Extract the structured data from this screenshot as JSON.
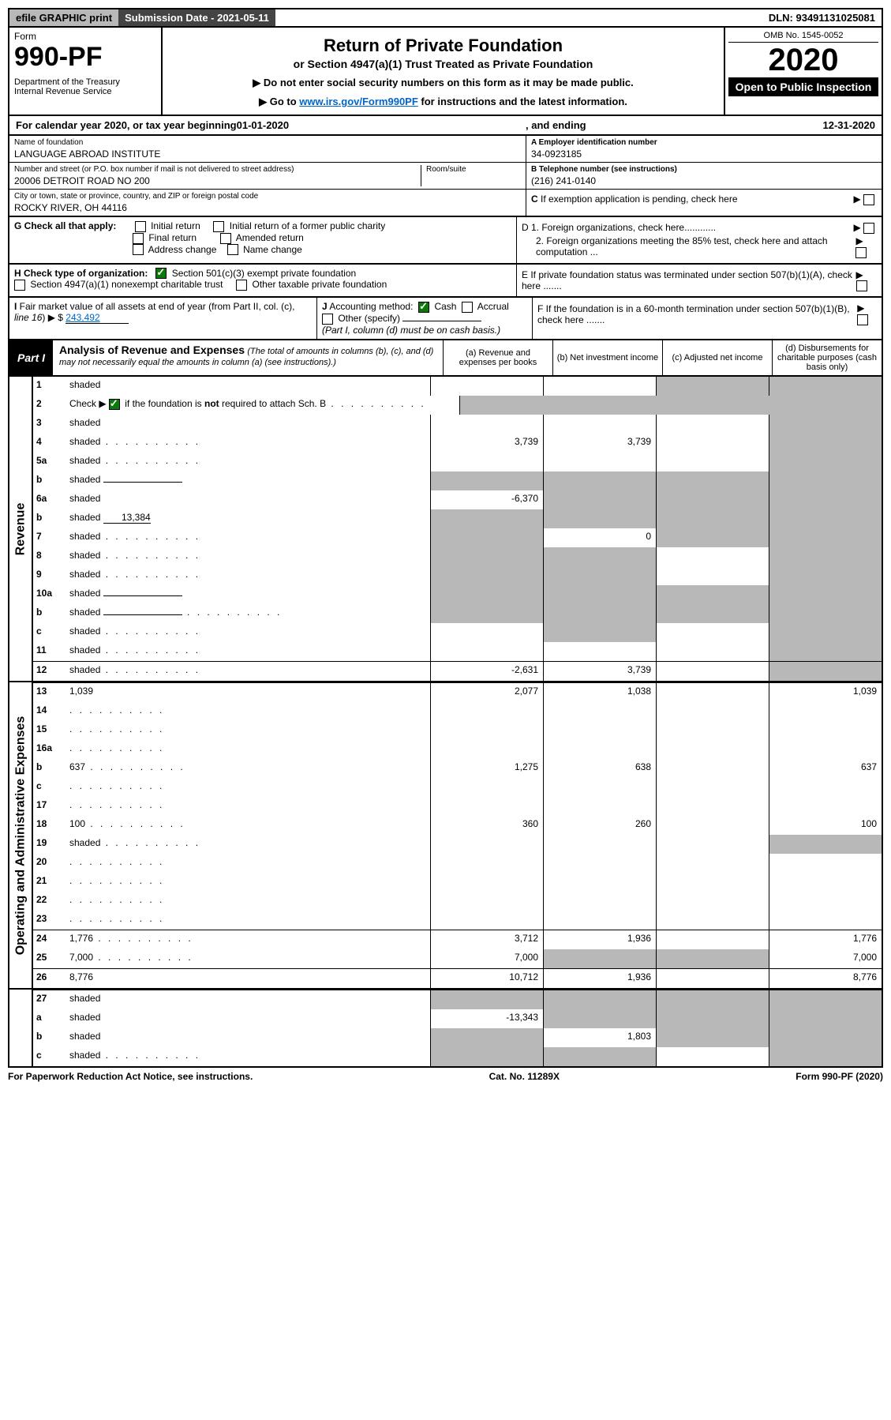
{
  "topbar": {
    "efile": "efile GRAPHIC print",
    "subdate": "Submission Date - 2021-05-11",
    "dln": "DLN: 93491131025081"
  },
  "header": {
    "form_label": "Form",
    "form_no": "990-PF",
    "dept": "Department of the Treasury\nInternal Revenue Service",
    "title": "Return of Private Foundation",
    "subtitle": "or Section 4947(a)(1) Trust Treated as Private Foundation",
    "instr1": "▶ Do not enter social security numbers on this form as it may be made public.",
    "instr2_pre": "▶ Go to ",
    "instr2_link": "www.irs.gov/Form990PF",
    "instr2_post": " for instructions and the latest information.",
    "omb": "OMB No. 1545-0052",
    "year": "2020",
    "open_public": "Open to Public Inspection"
  },
  "calyear": {
    "pre": "For calendar year 2020, or tax year beginning ",
    "begin": "01-01-2020",
    "mid": ", and ending ",
    "end": "12-31-2020"
  },
  "id": {
    "name_lbl": "Name of foundation",
    "name": "LANGUAGE ABROAD INSTITUTE",
    "addr_lbl": "Number and street (or P.O. box number if mail is not delivered to street address)",
    "addr": "20006 DETROIT ROAD NO 200",
    "room_lbl": "Room/suite",
    "city_lbl": "City or town, state or province, country, and ZIP or foreign postal code",
    "city": "ROCKY RIVER, OH  44116",
    "ein_lbl": "A Employer identification number",
    "ein": "34-0923185",
    "tel_lbl": "B Telephone number (see instructions)",
    "tel": "(216) 241-0140",
    "c_lbl": "C If exemption application is pending, check here"
  },
  "g": {
    "label": "G Check all that apply:",
    "opts": [
      "Initial return",
      "Initial return of a former public charity",
      "Final return",
      "Amended return",
      "Address change",
      "Name change"
    ]
  },
  "h": {
    "label": "H Check type of organization:",
    "opt1": "Section 501(c)(3) exempt private foundation",
    "opt2": "Section 4947(a)(1) nonexempt charitable trust",
    "opt3": "Other taxable private foundation"
  },
  "i": {
    "label": "I Fair market value of all assets at end of year (from Part II, col. (c), line 16) ▶ $",
    "value": "243,492"
  },
  "j": {
    "label": "J Accounting method:",
    "cash": "Cash",
    "accrual": "Accrual",
    "other": "Other (specify)",
    "note": "(Part I, column (d) must be on cash basis.)"
  },
  "right_checks": {
    "d1": "D 1. Foreign organizations, check here............",
    "d2": "2. Foreign organizations meeting the 85% test, check here and attach computation ...",
    "e": "E  If private foundation status was terminated under section 507(b)(1)(A), check here .......",
    "f": "F  If the foundation is in a 60-month termination under section 507(b)(1)(B), check here ......."
  },
  "part1": {
    "badge": "Part I",
    "title": "Analysis of Revenue and Expenses",
    "note": "(The total of amounts in columns (b), (c), and (d) may not necessarily equal the amounts in column (a) (see instructions).)",
    "col_a": "(a) Revenue and expenses per books",
    "col_b": "(b) Net investment income",
    "col_c": "(c) Adjusted net income",
    "col_d": "(d) Disbursements for charitable purposes (cash basis only)"
  },
  "sections": {
    "revenue": "Revenue",
    "expenses": "Operating and Administrative Expenses"
  },
  "rows": [
    {
      "n": "1",
      "d": "shaded",
      "a": "",
      "b": "",
      "c": "shaded"
    },
    {
      "n": "2",
      "d": "Check ▶ [✓] if the foundation is <b>not</b> required to attach Sch. B",
      "dots": true,
      "merged": true
    },
    {
      "n": "3",
      "d": "shaded",
      "a": "",
      "b": "",
      "c": ""
    },
    {
      "n": "4",
      "d": "shaded",
      "dots": true,
      "a": "3,739",
      "b": "3,739",
      "c": ""
    },
    {
      "n": "5a",
      "d": "shaded",
      "dots": true,
      "a": "",
      "b": "",
      "c": ""
    },
    {
      "n": "b",
      "d": "shaded",
      "inline": true,
      "a": "shaded",
      "b": "shaded",
      "c": "shaded"
    },
    {
      "n": "6a",
      "d": "shaded",
      "a": "-6,370",
      "b": "shaded",
      "c": "shaded"
    },
    {
      "n": "b",
      "d": "shaded",
      "inline": true,
      "ival": "13,384",
      "a": "shaded",
      "b": "shaded",
      "c": "shaded"
    },
    {
      "n": "7",
      "d": "shaded",
      "dots": true,
      "a": "shaded",
      "b": "0",
      "c": "shaded"
    },
    {
      "n": "8",
      "d": "shaded",
      "dots": true,
      "a": "shaded",
      "b": "shaded",
      "c": ""
    },
    {
      "n": "9",
      "d": "shaded",
      "dots": true,
      "a": "shaded",
      "b": "shaded",
      "c": ""
    },
    {
      "n": "10a",
      "d": "shaded",
      "inline": true,
      "a": "shaded",
      "b": "shaded",
      "c": "shaded"
    },
    {
      "n": "b",
      "d": "shaded",
      "dots": true,
      "inline": true,
      "a": "shaded",
      "b": "shaded",
      "c": "shaded"
    },
    {
      "n": "c",
      "d": "shaded",
      "dots": true,
      "a": "",
      "b": "shaded",
      "c": ""
    },
    {
      "n": "11",
      "d": "shaded",
      "dots": true,
      "a": "",
      "b": "",
      "c": ""
    },
    {
      "n": "12",
      "d": "shaded",
      "dots": true,
      "a": "-2,631",
      "b": "3,739",
      "c": "",
      "bt": true
    }
  ],
  "exp_rows": [
    {
      "n": "13",
      "d": "1,039",
      "a": "2,077",
      "b": "1,038",
      "c": "",
      "bt": true
    },
    {
      "n": "14",
      "d": "",
      "dots": true,
      "a": "",
      "b": "",
      "c": ""
    },
    {
      "n": "15",
      "d": "",
      "dots": true,
      "a": "",
      "b": "",
      "c": ""
    },
    {
      "n": "16a",
      "d": "",
      "dots": true,
      "a": "",
      "b": "",
      "c": ""
    },
    {
      "n": "b",
      "d": "637",
      "dots": true,
      "a": "1,275",
      "b": "638",
      "c": ""
    },
    {
      "n": "c",
      "d": "",
      "dots": true,
      "a": "",
      "b": "",
      "c": ""
    },
    {
      "n": "17",
      "d": "",
      "dots": true,
      "a": "",
      "b": "",
      "c": ""
    },
    {
      "n": "18",
      "d": "100",
      "dots": true,
      "a": "360",
      "b": "260",
      "c": ""
    },
    {
      "n": "19",
      "d": "shaded",
      "dots": true,
      "a": "",
      "b": "",
      "c": ""
    },
    {
      "n": "20",
      "d": "",
      "dots": true,
      "a": "",
      "b": "",
      "c": ""
    },
    {
      "n": "21",
      "d": "",
      "dots": true,
      "a": "",
      "b": "",
      "c": ""
    },
    {
      "n": "22",
      "d": "",
      "dots": true,
      "a": "",
      "b": "",
      "c": ""
    },
    {
      "n": "23",
      "d": "",
      "dots": true,
      "a": "",
      "b": "",
      "c": ""
    },
    {
      "n": "24",
      "d": "1,776",
      "dots": true,
      "a": "3,712",
      "b": "1,936",
      "c": "",
      "bt": true
    },
    {
      "n": "25",
      "d": "7,000",
      "dots": true,
      "a": "7,000",
      "b": "shaded",
      "c": "shaded"
    },
    {
      "n": "26",
      "d": "8,776",
      "a": "10,712",
      "b": "1,936",
      "c": "",
      "bt": true
    }
  ],
  "final_rows": [
    {
      "n": "27",
      "d": "shaded",
      "a": "shaded",
      "b": "shaded",
      "c": "shaded",
      "bt": true
    },
    {
      "n": "a",
      "d": "shaded",
      "a": "-13,343",
      "b": "shaded",
      "c": "shaded"
    },
    {
      "n": "b",
      "d": "shaded",
      "a": "shaded",
      "b": "1,803",
      "c": "shaded"
    },
    {
      "n": "c",
      "d": "shaded",
      "dots": true,
      "a": "shaded",
      "b": "shaded",
      "c": ""
    }
  ],
  "footer": {
    "left": "For Paperwork Reduction Act Notice, see instructions.",
    "mid": "Cat. No. 11289X",
    "right": "Form 990-PF (2020)"
  }
}
